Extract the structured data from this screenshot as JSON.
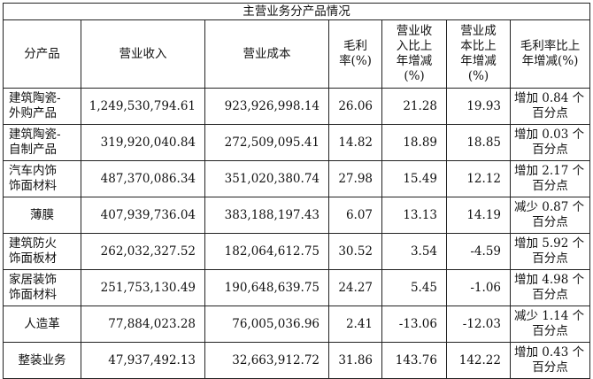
{
  "table": {
    "title": "主营业务分产品情况",
    "headers": [
      [
        "分产品"
      ],
      [
        "营业收入"
      ],
      [
        "营业成本"
      ],
      [
        "毛利",
        "率(%)"
      ],
      [
        "营业收",
        "入比上",
        "年增减",
        "(%)"
      ],
      [
        "营业成",
        "本比上",
        "年增减",
        "(%)"
      ],
      [
        "毛利率比上",
        "年增减(%)"
      ]
    ],
    "rows": [
      {
        "product": [
          "建筑陶瓷-",
          "外购产品"
        ],
        "revenue": "1,249,530,794.61",
        "cost": "923,926,998.14",
        "margin": "26.06",
        "rev_change": "21.28",
        "cost_change": "19.93",
        "margin_change": [
          "增加 0.84 个",
          "百分点"
        ]
      },
      {
        "product": [
          "建筑陶瓷-",
          "自制产品"
        ],
        "revenue": "319,920,040.84",
        "cost": "272,509,095.41",
        "margin": "14.82",
        "rev_change": "18.89",
        "cost_change": "18.85",
        "margin_change": [
          "增加 0.03 个",
          "百分点"
        ]
      },
      {
        "product": [
          "汽车内饰",
          "饰面材料"
        ],
        "revenue": "487,370,086.34",
        "cost": "351,020,380.74",
        "margin": "27.98",
        "rev_change": "15.49",
        "cost_change": "12.12",
        "margin_change": [
          "增加 2.17 个",
          "百分点"
        ]
      },
      {
        "product": [
          "薄膜"
        ],
        "revenue": "407,939,736.04",
        "cost": "383,188,197.43",
        "margin": "6.07",
        "rev_change": "13.13",
        "cost_change": "14.19",
        "margin_change": [
          "减少 0.87 个",
          "百分点"
        ]
      },
      {
        "product": [
          "建筑防火",
          "饰面板材"
        ],
        "revenue": "262,032,327.52",
        "cost": "182,064,612.75",
        "margin": "30.52",
        "rev_change": "3.54",
        "cost_change": "-4.59",
        "margin_change": [
          "增加 5.92 个",
          "百分点"
        ]
      },
      {
        "product": [
          "家居装饰",
          "饰面材料"
        ],
        "revenue": "251,753,130.49",
        "cost": "190,648,639.75",
        "margin": "24.27",
        "rev_change": "5.45",
        "cost_change": "-1.06",
        "margin_change": [
          "增加 4.98 个",
          "百分点"
        ]
      },
      {
        "product": [
          "人造革"
        ],
        "revenue": "77,884,023.28",
        "cost": "76,005,036.96",
        "margin": "2.41",
        "rev_change": "-13.06",
        "cost_change": "-12.03",
        "margin_change": [
          "减少 1.14 个",
          "百分点"
        ]
      },
      {
        "product": [
          "整装业务"
        ],
        "revenue": "47,937,492.13",
        "cost": "32,663,912.72",
        "margin": "31.86",
        "rev_change": "143.76",
        "cost_change": "142.22",
        "margin_change": [
          "增加 0.43 个",
          "百分点"
        ]
      }
    ]
  }
}
